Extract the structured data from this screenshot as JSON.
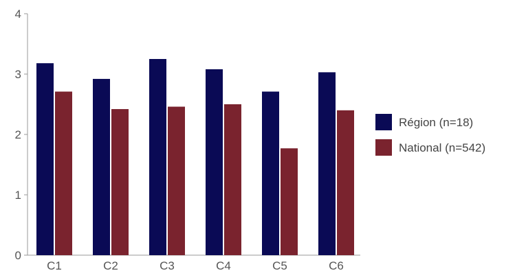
{
  "chart_data": {
    "type": "bar",
    "categories": [
      "C1",
      "C2",
      "C3",
      "C4",
      "C5",
      "C6"
    ],
    "series": [
      {
        "name": "Région (n=18)",
        "color": "#0a0a55",
        "values": [
          3.18,
          2.92,
          3.25,
          3.08,
          2.71,
          3.03
        ]
      },
      {
        "name": "National (n=542)",
        "color": "#7a232e",
        "values": [
          2.71,
          2.42,
          2.46,
          2.5,
          1.77,
          2.4
        ]
      }
    ],
    "yticks": [
      "0",
      "1",
      "2",
      "3",
      "4"
    ],
    "ylim": [
      0,
      4
    ],
    "grid": false,
    "legend_position": "right"
  }
}
